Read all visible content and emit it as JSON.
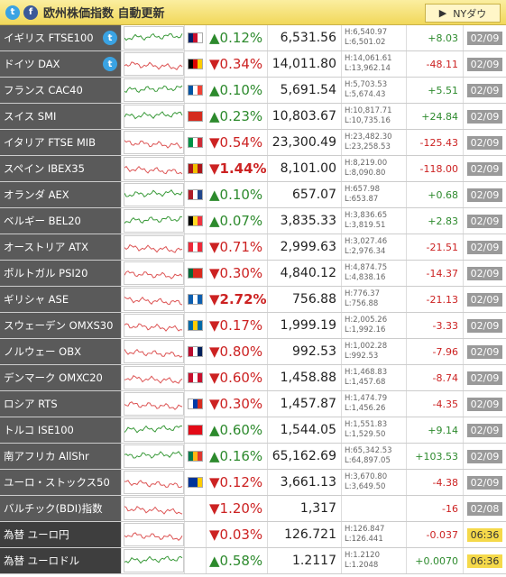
{
  "header": {
    "title": "欧州株価指数 自動更新",
    "button": "NYダウ"
  },
  "rows": [
    {
      "name": "イギリス FTSE100",
      "change": "▲0.12%",
      "price": "6,531.56",
      "high": "H:6,540.97",
      "low": "L:6,501.02",
      "diff": "+8.03",
      "time": "02/09"
    },
    {
      "name": "ドイツ DAX",
      "change": "▼0.34%",
      "price": "14,011.80",
      "high": "H:14,061.61",
      "low": "L:13,962.14",
      "diff": "-48.11",
      "time": "02/09"
    },
    {
      "name": "フランス CAC40",
      "change": "▲0.10%",
      "price": "5,691.54",
      "high": "H:5,703.53",
      "low": "L:5,674.43",
      "diff": "+5.51",
      "time": "02/09"
    },
    {
      "name": "スイス SMI",
      "change": "▲0.23%",
      "price": "10,803.67",
      "high": "H:10,817.71",
      "low": "L:10,735.16",
      "diff": "+24.84",
      "time": "02/09"
    },
    {
      "name": "イタリア FTSE MIB",
      "change": "▼0.54%",
      "price": "23,300.49",
      "high": "H:23,482.30",
      "low": "L:23,258.53",
      "diff": "-125.43",
      "time": "02/09"
    },
    {
      "name": "スペイン IBEX35",
      "change": "▼1.44%",
      "price": "8,101.00",
      "high": "H:8,219.00",
      "low": "L:8,090.80",
      "diff": "-118.00",
      "time": "02/09"
    },
    {
      "name": "オランダ AEX",
      "change": "▲0.10%",
      "price": "657.07",
      "high": "H:657.98",
      "low": "L:653.87",
      "diff": "+0.68",
      "time": "02/09"
    },
    {
      "name": "ベルギー BEL20",
      "change": "▲0.07%",
      "price": "3,835.33",
      "high": "H:3,836.65",
      "low": "L:3,819.51",
      "diff": "+2.83",
      "time": "02/09"
    },
    {
      "name": "オーストリア ATX",
      "change": "▼0.71%",
      "price": "2,999.63",
      "high": "H:3,027.46",
      "low": "L:2,976.34",
      "diff": "-21.51",
      "time": "02/09"
    },
    {
      "name": "ポルトガル PSI20",
      "change": "▼0.30%",
      "price": "4,840.12",
      "high": "H:4,874.75",
      "low": "L:4,838.16",
      "diff": "-14.37",
      "time": "02/09"
    },
    {
      "name": "ギリシャ ASE",
      "change": "▼2.72%",
      "price": "756.88",
      "high": "H:776.37",
      "low": "L:756.88",
      "diff": "-21.13",
      "time": "02/09"
    },
    {
      "name": "スウェーデン OMXS30",
      "change": "▼0.17%",
      "price": "1,999.19",
      "high": "H:2,005.26",
      "low": "L:1,992.16",
      "diff": "-3.33",
      "time": "02/09"
    },
    {
      "name": "ノルウェー OBX",
      "change": "▼0.80%",
      "price": "992.53",
      "high": "H:1,002.28",
      "low": "L:992.53",
      "diff": "-7.96",
      "time": "02/09"
    },
    {
      "name": "デンマーク OMXC20",
      "change": "▼0.60%",
      "price": "1,458.88",
      "high": "H:1,468.83",
      "low": "L:1,457.68",
      "diff": "-8.74",
      "time": "02/09"
    },
    {
      "name": "ロシア RTS",
      "change": "▼0.30%",
      "price": "1,457.87",
      "high": "H:1,474.79",
      "low": "L:1,456.26",
      "diff": "-4.35",
      "time": "02/09"
    },
    {
      "name": "トルコ ISE100",
      "change": "▲0.60%",
      "price": "1,544.05",
      "high": "H:1,551.83",
      "low": "L:1,529.50",
      "diff": "+9.14",
      "time": "02/09"
    },
    {
      "name": "南アフリカ AllShr",
      "change": "▲0.16%",
      "price": "65,162.69",
      "high": "H:65,342.53",
      "low": "L:64,897.05",
      "diff": "+103.53",
      "time": "02/09"
    },
    {
      "name": "ユーロ・ストックス50",
      "change": "▼0.12%",
      "price": "3,661.13",
      "high": "H:3,670.80",
      "low": "L:3,649.50",
      "diff": "-4.38",
      "time": "02/09"
    },
    {
      "name": "バルチック(BDI)指数",
      "change": "▼1.20%",
      "price": "1,317",
      "diff": "-16",
      "time": "02/08"
    },
    {
      "name": "為替 ユーロ円",
      "change": "▼0.03%",
      "price": "126.721",
      "high": "H:126.847",
      "low": "L:126.441",
      "diff": "-0.037",
      "time": "06:36"
    },
    {
      "name": "為替 ユーロドル",
      "change": "▲0.58%",
      "price": "1.2117",
      "high": "H:1.2120",
      "low": "L:1.2048",
      "diff": "+0.0070",
      "time": "06:36"
    }
  ]
}
